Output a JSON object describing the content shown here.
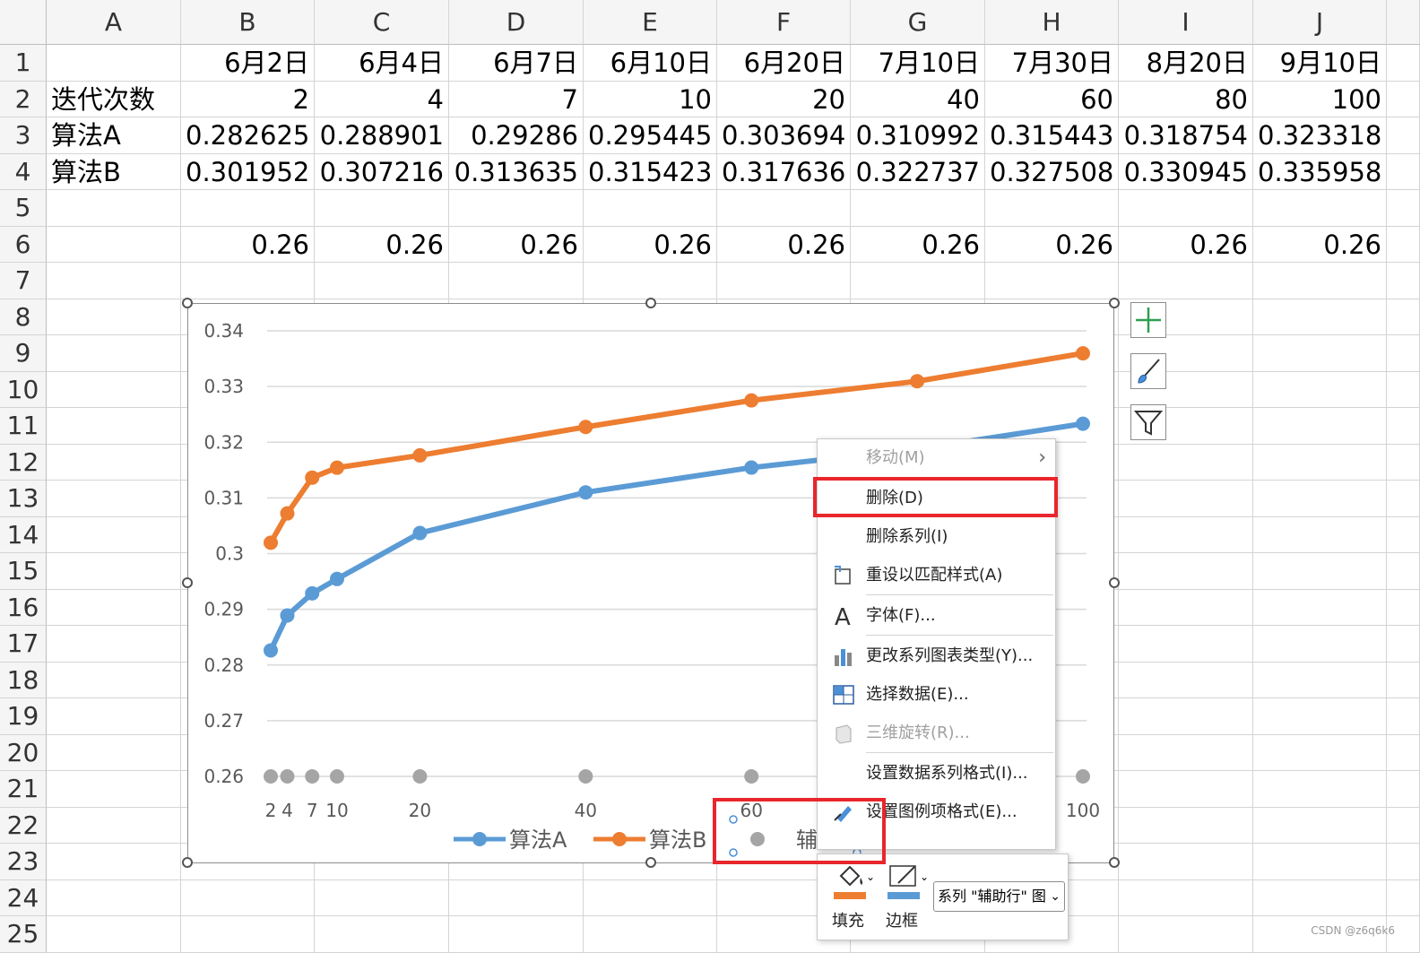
{
  "columns": [
    "A",
    "B",
    "C",
    "D",
    "E",
    "F",
    "G",
    "H",
    "I",
    "J"
  ],
  "rows": [
    "1",
    "2",
    "3",
    "4",
    "5",
    "6",
    "7",
    "8",
    "9",
    "10",
    "11",
    "12",
    "13",
    "14",
    "15",
    "16",
    "17",
    "18",
    "19",
    "20",
    "21",
    "22",
    "23",
    "24",
    "25"
  ],
  "table": {
    "r1": [
      "",
      "6月2日",
      "6月4日",
      "6月7日",
      "6月10日",
      "6月20日",
      "7月10日",
      "7月30日",
      "8月20日",
      "9月10日"
    ],
    "r2": [
      "迭代次数",
      "2",
      "4",
      "7",
      "10",
      "20",
      "40",
      "60",
      "80",
      "100"
    ],
    "r3": [
      "算法A",
      "0.282625",
      "0.288901",
      "0.29286",
      "0.295445",
      "0.303694",
      "0.310992",
      "0.315443",
      "0.318754",
      "0.323318"
    ],
    "r4": [
      "算法B",
      "0.301952",
      "0.307216",
      "0.313635",
      "0.315423",
      "0.317636",
      "0.322737",
      "0.327508",
      "0.330945",
      "0.335958"
    ],
    "r6": [
      "",
      "0.26",
      "0.26",
      "0.26",
      "0.26",
      "0.26",
      "0.26",
      "0.26",
      "0.26",
      "0.26"
    ]
  },
  "chart_data": {
    "type": "scatter",
    "x": [
      2,
      4,
      7,
      10,
      20,
      40,
      60,
      80,
      100
    ],
    "series": [
      {
        "name": "算法A",
        "color": "#5b9bd5",
        "values": [
          0.282625,
          0.288901,
          0.29286,
          0.295445,
          0.303694,
          0.310992,
          0.315443,
          0.318754,
          0.323318
        ]
      },
      {
        "name": "算法B",
        "color": "#ed7d31",
        "values": [
          0.301952,
          0.307216,
          0.313635,
          0.315423,
          0.317636,
          0.322737,
          0.327508,
          0.330945,
          0.335958
        ]
      },
      {
        "name": "辅助行",
        "color": "#a5a5a5",
        "values": [
          0.26,
          0.26,
          0.26,
          0.26,
          0.26,
          0.26,
          0.26,
          0.26,
          0.26
        ]
      }
    ],
    "ylim": [
      0.26,
      0.34
    ],
    "yticks": [
      "0.34",
      "0.33",
      "0.32",
      "0.31",
      "0.3",
      "0.29",
      "0.28",
      "0.27",
      "0.26"
    ],
    "xtick_labels": [
      "2",
      "4",
      "7",
      "10",
      "20",
      "40",
      "60",
      "80",
      "100"
    ],
    "grid": true,
    "legend": "bottom"
  },
  "context_menu": {
    "items": [
      {
        "label": "移动(M)",
        "icon": "move-icon",
        "disabled": true,
        "submenu": true
      },
      {
        "label": "删除(D)",
        "icon": "",
        "disabled": false
      },
      {
        "label": "删除系列(I)",
        "icon": "",
        "disabled": false
      },
      {
        "label": "重设以匹配样式(A)",
        "icon": "reset-style-icon",
        "disabled": false
      },
      {
        "label": "字体(F)...",
        "icon": "font-icon",
        "disabled": false
      },
      {
        "label": "更改系列图表类型(Y)...",
        "icon": "chart-type-icon",
        "disabled": false
      },
      {
        "label": "选择数据(E)...",
        "icon": "select-data-icon",
        "disabled": false
      },
      {
        "label": "三维旋转(R)...",
        "icon": "3d-rotate-icon",
        "disabled": true
      },
      {
        "label": "设置数据系列格式(I)...",
        "icon": "",
        "disabled": false
      },
      {
        "label": "设置图例项格式(E)...",
        "icon": "format-legend-icon",
        "disabled": false
      }
    ]
  },
  "mini_toolbar": {
    "fill_label": "填充",
    "border_label": "边框",
    "series_select": "系列 \"辅助行\" 图"
  },
  "watermark": "CSDN @z6q6k6",
  "colors": {
    "accent_red": "#e8262c",
    "series_a": "#5b9bd5",
    "series_b": "#ed7d31",
    "aux": "#a5a5a5"
  }
}
